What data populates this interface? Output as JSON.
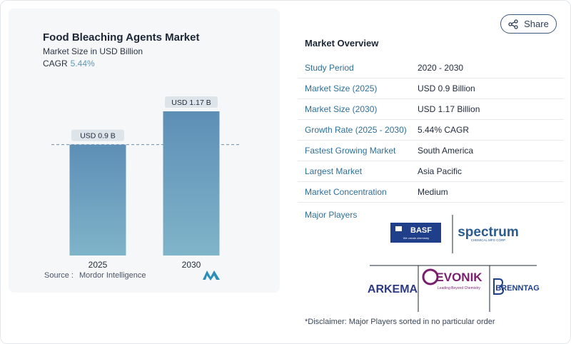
{
  "share": {
    "label": "Share"
  },
  "chart": {
    "title": "Food Bleaching Agents Market",
    "subtitle": "Market Size in USD Billion",
    "cagr_label": "CAGR",
    "cagr_value": "5.44%",
    "source_label": "Source :",
    "source_value": "Mordor Intelligence"
  },
  "chart_data": {
    "type": "bar",
    "categories": [
      "2025",
      "2030"
    ],
    "values": [
      0.9,
      1.17
    ],
    "data_labels": [
      "USD 0.9 B",
      "USD 1.17 B"
    ],
    "title": "Food Bleaching Agents Market",
    "subtitle": "Market Size in USD Billion",
    "xlabel": "",
    "ylabel": "",
    "ylim": [
      0,
      1.17
    ],
    "grid": false,
    "reference_line_value": 0.9,
    "colors": {
      "bar_top": "#5d8fb6",
      "bar_bottom": "#7fb4c9",
      "label_bg": "#dde4ea"
    }
  },
  "overview": {
    "title": "Market Overview",
    "rows": [
      {
        "key": "Study Period",
        "value": "2020 - 2030"
      },
      {
        "key": "Market Size (2025)",
        "value": "USD 0.9 Billion"
      },
      {
        "key": "Market Size (2030)",
        "value": "USD 1.17 Billion"
      },
      {
        "key": "Growth Rate (2025 - 2030)",
        "value": "5.44% CAGR"
      },
      {
        "key": "Fastest Growing Market",
        "value": "South America"
      },
      {
        "key": "Largest Market",
        "value": "Asia Pacific"
      },
      {
        "key": "Market Concentration",
        "value": "Medium"
      }
    ]
  },
  "players": {
    "title": "Major Players",
    "logos": {
      "basf": "BASF",
      "basf_tag": "We create chemistry",
      "spectrum": "spectrum",
      "spectrum_tag": "CHEMICAL MFG CORP",
      "arkema": "ARKEMA",
      "evonik": "EVONIK",
      "evonik_tag": "Leading Beyond Chemistry",
      "brenntag": "BRENNTAG"
    },
    "disclaimer": "*Disclaimer: Major Players sorted in no particular order"
  }
}
